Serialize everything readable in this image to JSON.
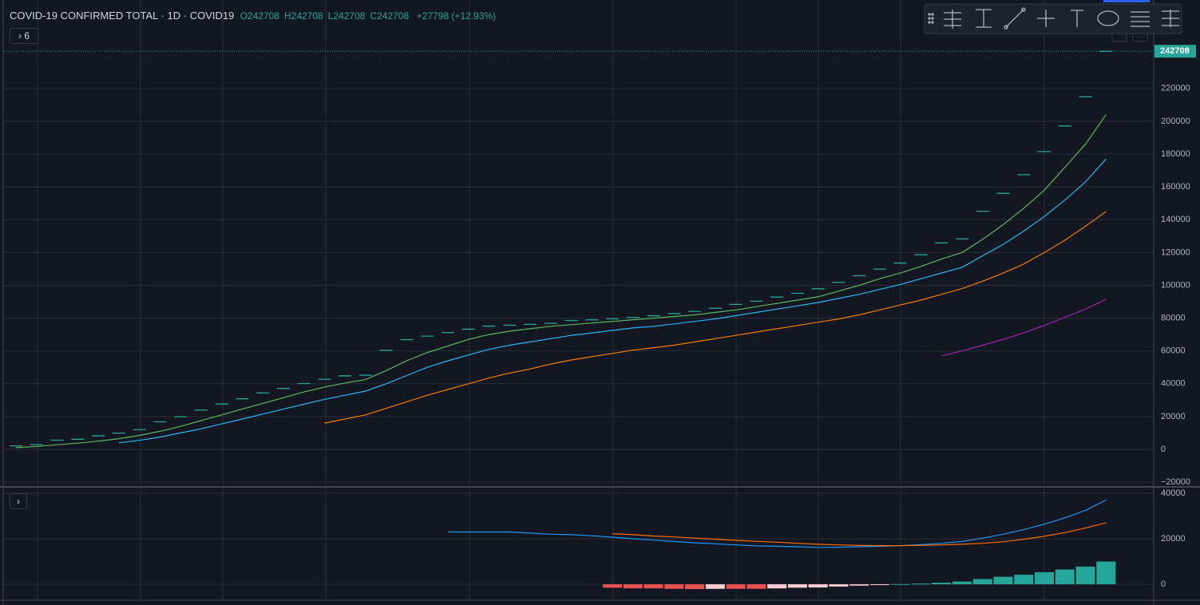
{
  "header": {
    "symbol": "COVID-19 CONFIRMED TOTAL",
    "interval": "1D",
    "source": "COVID19",
    "ohlc": [
      {
        "label": "O",
        "value": "242708"
      },
      {
        "label": "H",
        "value": "242708"
      },
      {
        "label": "L",
        "value": "242708"
      },
      {
        "label": "C",
        "value": "242708"
      }
    ],
    "change": "+27798 (+12.93%)",
    "pane_toggle": "6"
  },
  "chart_data": [
    {
      "type": "line",
      "ylim": [
        -21900,
        271500
      ],
      "yticks": [
        {
          "value": -20000,
          "label": "−20000"
        },
        0,
        20000,
        40000,
        60000,
        80000,
        100000,
        120000,
        140000,
        160000,
        180000,
        200000,
        220000
      ],
      "grid": true,
      "price_line": 242708,
      "price_line_color": "#26a69a",
      "series": [
        {
          "style": "tick",
          "color": "#26a69a",
          "values": [
            2118,
            2927,
            5578,
            6166,
            8234,
            9927,
            12038,
            16787,
            19881,
            23892,
            27635,
            30794,
            34391,
            37120,
            40150,
            42762,
            44802,
            45221,
            60368,
            66885,
            69030,
            71224,
            73258,
            75136,
            75639,
            76197,
            76823,
            78579,
            78965,
            79568,
            80413,
            81395,
            82754,
            84120,
            86011,
            88369,
            90306,
            92840,
            95120,
            97886,
            101801,
            105847,
            109821,
            113590,
            118620,
            125875,
            128343,
            145193,
            156094,
            167446,
            181527,
            197142,
            214910,
            242708
          ]
        },
        {
          "style": "line",
          "color": "#5cb85c",
          "values": [
            1000,
            1800,
            2800,
            3800,
            5000,
            6500,
            8500,
            11000,
            14000,
            17500,
            21000,
            24500,
            28000,
            31500,
            35000,
            38000,
            40500,
            42500,
            48000,
            54000,
            59000,
            63000,
            67000,
            70000,
            72000,
            73500,
            75000,
            76000,
            77000,
            78000,
            79000,
            80000,
            81000,
            82000,
            83500,
            85000,
            87000,
            89000,
            91000,
            93000,
            96500,
            100000,
            104000,
            107500,
            111500,
            116000,
            120000,
            128000,
            137000,
            147000,
            158000,
            172000,
            186000,
            204000
          ]
        },
        {
          "style": "line",
          "color": "#29b6f6",
          "values": [
            null,
            null,
            null,
            null,
            null,
            4000,
            5500,
            7500,
            10000,
            12500,
            15500,
            18500,
            21500,
            24500,
            27500,
            30500,
            33000,
            35500,
            40000,
            45000,
            50000,
            54000,
            57500,
            61000,
            63500,
            65500,
            67500,
            69500,
            71000,
            72500,
            74000,
            75000,
            76500,
            78000,
            79500,
            81500,
            83500,
            85500,
            87500,
            89500,
            92000,
            94500,
            97500,
            100500,
            104000,
            107500,
            111000,
            118000,
            125000,
            133000,
            142000,
            152000,
            163000,
            177000
          ]
        },
        {
          "style": "line",
          "color": "#f57c00",
          "values": [
            null,
            null,
            null,
            null,
            null,
            null,
            null,
            null,
            null,
            null,
            null,
            null,
            null,
            null,
            null,
            16000,
            18500,
            21000,
            25000,
            29000,
            33000,
            36500,
            40000,
            43500,
            46500,
            49000,
            52000,
            54500,
            56500,
            58500,
            60500,
            62000,
            63500,
            65500,
            67500,
            69500,
            71500,
            73500,
            75500,
            77500,
            79500,
            82000,
            85000,
            88000,
            91000,
            94500,
            98000,
            102500,
            107500,
            113000,
            120000,
            127500,
            136000,
            145000
          ]
        },
        {
          "style": "line",
          "color": "#9c27b0",
          "values": [
            null,
            null,
            null,
            null,
            null,
            null,
            null,
            null,
            null,
            null,
            null,
            null,
            null,
            null,
            null,
            null,
            null,
            null,
            null,
            null,
            null,
            null,
            null,
            null,
            null,
            null,
            null,
            null,
            null,
            null,
            null,
            null,
            null,
            null,
            null,
            null,
            null,
            null,
            null,
            null,
            null,
            null,
            null,
            null,
            null,
            57000,
            60000,
            63500,
            67000,
            71000,
            75500,
            80500,
            85500,
            91500
          ]
        }
      ]
    },
    {
      "type": "line",
      "ylim": [
        -7000,
        42100
      ],
      "yticks": [
        0,
        20000,
        40000
      ],
      "grid": true,
      "series": [
        {
          "style": "histogram",
          "colors": {
            "falling_below": "#e8524f",
            "rising_below": "#ffcdd2",
            "rising_above": "#26a69a",
            "falling_above": "#b2dfdb"
          },
          "values": [
            null,
            null,
            null,
            null,
            null,
            null,
            null,
            null,
            null,
            null,
            null,
            null,
            null,
            null,
            null,
            null,
            null,
            null,
            null,
            null,
            null,
            null,
            null,
            null,
            null,
            null,
            null,
            null,
            null,
            -1500,
            -1800,
            -1800,
            -2000,
            -2100,
            -2000,
            -2000,
            -2000,
            -1800,
            -1500,
            -1400,
            -1000,
            -600,
            -300,
            100,
            300,
            700,
            1200,
            2300,
            3300,
            4200,
            5300,
            6500,
            7800,
            10000
          ]
        },
        {
          "style": "line",
          "color": "#2196f3",
          "values": [
            null,
            null,
            null,
            null,
            null,
            null,
            null,
            null,
            null,
            null,
            null,
            null,
            null,
            null,
            null,
            null,
            null,
            null,
            null,
            null,
            null,
            23000,
            23000,
            23000,
            23000,
            22500,
            22000,
            21800,
            21300,
            20700,
            20000,
            19400,
            18800,
            18200,
            17800,
            17300,
            16900,
            16700,
            16500,
            16200,
            16300,
            16500,
            16700,
            17000,
            17400,
            18000,
            18800,
            20300,
            22000,
            24000,
            26400,
            29200,
            32500,
            37000
          ]
        },
        {
          "style": "line",
          "color": "#ff6d00",
          "values": [
            null,
            null,
            null,
            null,
            null,
            null,
            null,
            null,
            null,
            null,
            null,
            null,
            null,
            null,
            null,
            null,
            null,
            null,
            null,
            null,
            null,
            null,
            null,
            null,
            null,
            null,
            null,
            null,
            null,
            22200,
            21800,
            21200,
            20800,
            20300,
            19800,
            19300,
            18900,
            18500,
            18000,
            17600,
            17300,
            17100,
            17000,
            17000,
            17100,
            17300,
            17600,
            18000,
            18700,
            19800,
            21100,
            22700,
            24700,
            27000
          ]
        }
      ]
    }
  ]
}
